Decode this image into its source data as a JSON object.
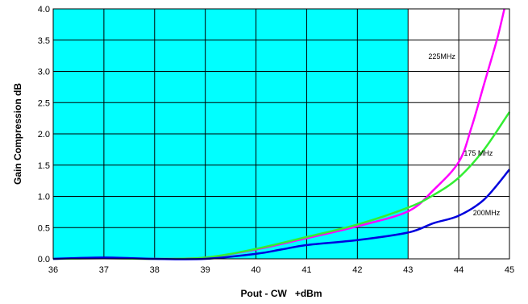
{
  "chart_data": {
    "type": "line",
    "title": "",
    "xlabel": "Pout - CW   +dBm",
    "ylabel": "Gain Compression dB",
    "xlim": [
      36,
      45
    ],
    "ylim": [
      0,
      4
    ],
    "x_ticks": [
      "36",
      "37",
      "38",
      "39",
      "40",
      "41",
      "42",
      "43",
      "44",
      "45"
    ],
    "y_ticks": [
      "0.0",
      "0.5",
      "1.0",
      "1.5",
      "2.0",
      "2.5",
      "3.0",
      "3.5",
      "4.0"
    ],
    "grid": true,
    "shaded_region": {
      "x_from": 36,
      "x_to": 43,
      "color": "#00ffff"
    },
    "series": [
      {
        "name": "225MHz",
        "color": "#ff00ff",
        "label_at": [
          43.4,
          3.2
        ],
        "points": [
          [
            36,
            0
          ],
          [
            37,
            0.01
          ],
          [
            38,
            0
          ],
          [
            39,
            0.02
          ],
          [
            40,
            0.15
          ],
          [
            41,
            0.33
          ],
          [
            42,
            0.52
          ],
          [
            43,
            0.76
          ],
          [
            43.5,
            1.1
          ],
          [
            44,
            1.55
          ],
          [
            44.25,
            2.1
          ],
          [
            44.5,
            2.8
          ],
          [
            44.75,
            3.5
          ],
          [
            44.9,
            4.0
          ]
        ]
      },
      {
        "name": "175 MHz",
        "color": "#33ee33",
        "label_at": [
          44.1,
          1.65
        ],
        "points": [
          [
            36,
            0
          ],
          [
            37,
            0.01
          ],
          [
            38,
            0
          ],
          [
            39,
            0.02
          ],
          [
            40,
            0.16
          ],
          [
            41,
            0.35
          ],
          [
            42,
            0.55
          ],
          [
            43,
            0.82
          ],
          [
            43.5,
            1.02
          ],
          [
            44,
            1.3
          ],
          [
            44.5,
            1.75
          ],
          [
            45,
            2.35
          ]
        ]
      },
      {
        "name": "200MHz",
        "color": "#0000dd",
        "label_at": [
          44.28,
          0.7
        ],
        "points": [
          [
            36,
            0
          ],
          [
            37,
            0.02
          ],
          [
            38,
            0
          ],
          [
            39,
            0
          ],
          [
            40,
            0.08
          ],
          [
            40.5,
            0.15
          ],
          [
            41,
            0.22
          ],
          [
            42,
            0.3
          ],
          [
            43,
            0.42
          ],
          [
            43.5,
            0.57
          ],
          [
            44,
            0.69
          ],
          [
            44.5,
            0.95
          ],
          [
            45,
            1.43
          ]
        ]
      }
    ]
  }
}
